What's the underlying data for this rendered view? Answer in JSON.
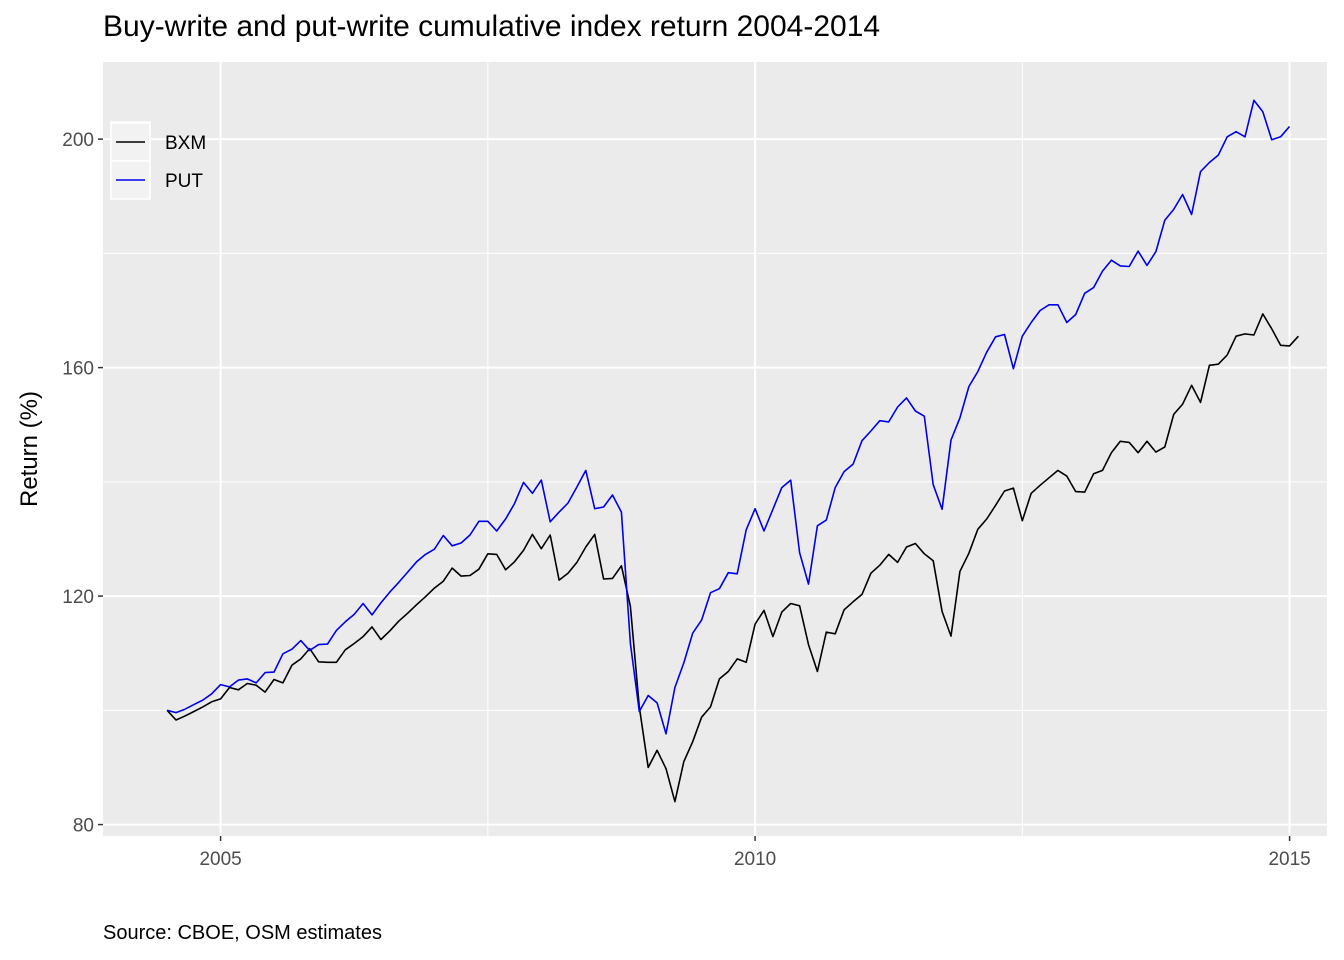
{
  "chart_data": {
    "type": "line",
    "title": "Buy-write and put-write cumulative index return 2004-2014",
    "ylabel": "Return (%)",
    "xlabel": "",
    "caption": "Source: CBOE, OSM estimates",
    "x_ticks": [
      2005,
      2010,
      2015
    ],
    "y_ticks": [
      80,
      120,
      160,
      200
    ],
    "xlim": [
      2003.9,
      2015.35
    ],
    "ylim": [
      78,
      213.5
    ],
    "grid": true,
    "legend_position": "top-left",
    "background": "#ebebeb",
    "grid_color": "#ffffff",
    "x_start": 2004.5,
    "x_step": 0.08333,
    "series": [
      {
        "name": "BXM",
        "color": "#000000",
        "values": [
          100,
          98.3,
          99.0,
          99.8,
          100.6,
          101.5,
          102.0,
          104.0,
          103.6,
          104.7,
          104.4,
          103.2,
          105.4,
          104.8,
          107.9,
          109.0,
          110.8,
          108.5,
          108.4,
          108.4,
          110.6,
          111.7,
          112.9,
          114.6,
          112.4,
          113.9,
          115.6,
          117.0,
          118.5,
          119.9,
          121.4,
          122.6,
          124.9,
          123.5,
          123.6,
          124.7,
          127.4,
          127.3,
          124.6,
          126.0,
          128.0,
          130.8,
          128.3,
          130.7,
          122.8,
          124.0,
          125.9,
          128.6,
          130.8,
          123.0,
          123.1,
          125.3,
          118.2,
          100.6,
          90.0,
          93.0,
          89.8,
          84.0,
          91.0,
          94.5,
          98.8,
          100.6,
          105.5,
          106.8,
          109.0,
          108.4,
          115.1,
          117.5,
          112.9,
          117.2,
          118.7,
          118.3,
          111.5,
          106.8,
          113.7,
          113.4,
          117.6,
          119.0,
          120.3,
          124.0,
          125.4,
          127.3,
          125.9,
          128.6,
          129.2,
          127.4,
          126.2,
          117.3,
          113.0,
          124.3,
          127.5,
          131.7,
          133.5,
          135.9,
          138.4,
          138.9,
          133.2,
          138.0,
          139.4,
          140.7,
          142.0,
          141.0,
          138.3,
          138.2,
          141.4,
          142.0,
          145.1,
          147.1,
          146.9,
          145.1,
          147.1,
          145.2,
          146.1,
          151.8,
          153.6,
          156.9,
          153.9,
          160.4,
          160.6,
          162.2,
          165.5,
          165.9,
          165.7,
          169.4,
          166.8,
          163.9,
          163.8,
          165.5
        ]
      },
      {
        "name": "PUT",
        "color": "#0000ee",
        "values": [
          100,
          99.6,
          100.2,
          101.0,
          101.8,
          102.9,
          104.5,
          104.1,
          105.3,
          105.5,
          104.8,
          106.6,
          106.7,
          109.9,
          110.7,
          112.2,
          110.5,
          111.5,
          111.6,
          114.0,
          115.5,
          116.8,
          118.7,
          116.7,
          118.8,
          120.7,
          122.4,
          124.2,
          126.0,
          127.3,
          128.2,
          130.6,
          128.8,
          129.3,
          130.7,
          133.1,
          133.1,
          131.4,
          133.5,
          136.2,
          139.9,
          138.0,
          140.3,
          133.0,
          134.7,
          136.3,
          139.1,
          142.0,
          135.3,
          135.6,
          137.7,
          134.7,
          111.7,
          99.8,
          102.6,
          101.3,
          95.9,
          104.0,
          108.3,
          113.5,
          115.8,
          120.6,
          121.3,
          124.1,
          123.9,
          131.6,
          135.3,
          131.4,
          135.2,
          139.0,
          140.3,
          127.6,
          122.1,
          132.3,
          133.3,
          139.0,
          141.8,
          143.1,
          147.2,
          148.9,
          150.7,
          150.5,
          153.1,
          154.7,
          152.4,
          151.5,
          139.5,
          135.2,
          147.3,
          151.2,
          156.7,
          159.3,
          162.7,
          165.4,
          165.8,
          159.8,
          165.5,
          167.9,
          170.0,
          171.0,
          171.0,
          167.9,
          169.3,
          173.0,
          174.0,
          176.9,
          178.8,
          177.8,
          177.7,
          180.4,
          177.9,
          180.3,
          185.8,
          187.7,
          190.3,
          186.8,
          194.3,
          195.9,
          197.2,
          200.4,
          201.3,
          200.4,
          206.8,
          204.8,
          199.9,
          200.4,
          202.2
        ]
      }
    ]
  }
}
